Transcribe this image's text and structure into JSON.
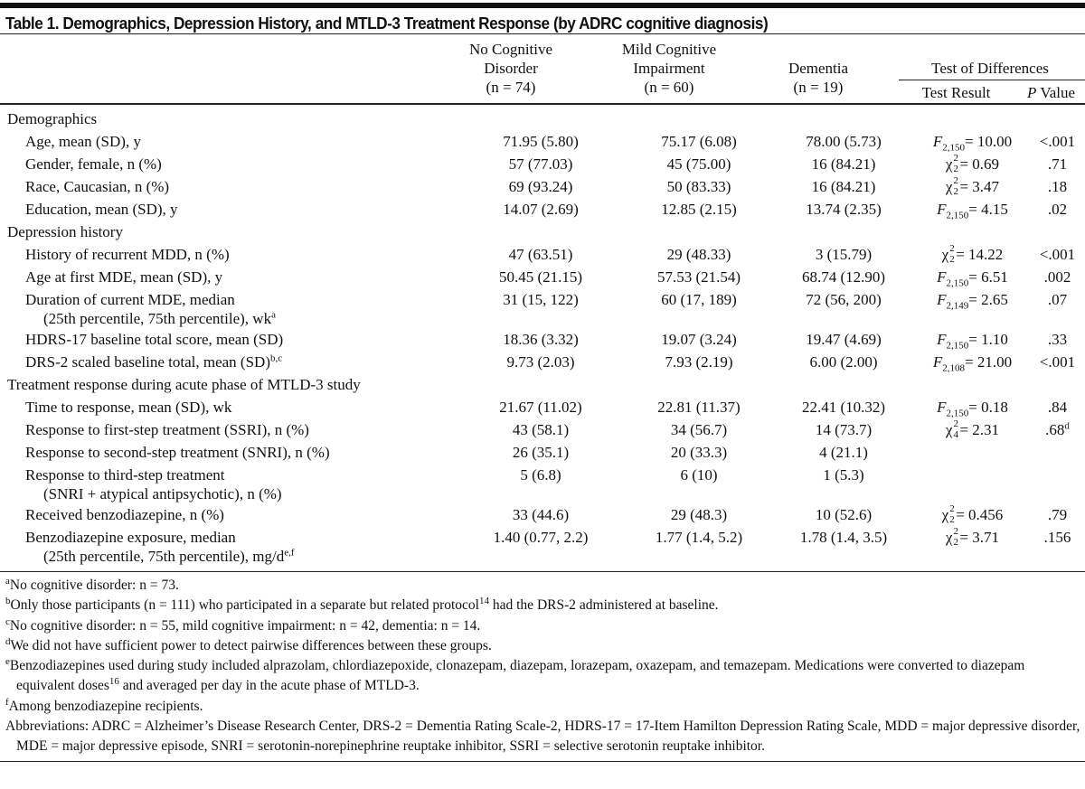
{
  "title": "Table 1. Demographics, Depression History, and MTLD-3 Treatment Response (by ADRC cognitive diagnosis)",
  "columns": {
    "c1": [
      "No Cognitive",
      "Disorder",
      "(n = 74)"
    ],
    "c2": [
      "Mild Cognitive",
      "Impairment",
      "(n = 60)"
    ],
    "c3": [
      "Dementia",
      "(n = 19)"
    ],
    "group": "Test of Differences",
    "test": "Test Result",
    "p_italic": "P",
    "p": "Value"
  },
  "rows": [
    {
      "section": "Demographics"
    },
    {
      "label": "Age, mean (SD), y",
      "v": [
        "71.95 (5.80)",
        "75.17 (6.08)",
        "78.00 (5.73)"
      ],
      "test": {
        "s": "F",
        "sub": "2,150",
        "val": "= 10.00"
      },
      "p": "<.001"
    },
    {
      "label": "Gender, female, n (%)",
      "v": [
        "57 (77.03)",
        "45 (75.00)",
        "16 (84.21)"
      ],
      "test": {
        "s": "χ",
        "sup": "2",
        "sub": "2",
        "val": "= 0.69"
      },
      "p": ".71"
    },
    {
      "label": "Race, Caucasian, n (%)",
      "v": [
        "69 (93.24)",
        "50 (83.33)",
        "16 (84.21)"
      ],
      "test": {
        "s": "χ",
        "sup": "2",
        "sub": "2",
        "val": "= 3.47"
      },
      "p": ".18"
    },
    {
      "label": "Education, mean (SD), y",
      "v": [
        "14.07 (2.69)",
        "12.85 (2.15)",
        "13.74 (2.35)"
      ],
      "test": {
        "s": "F",
        "sub": "2,150",
        "val": "= 4.15"
      },
      "p": ".02"
    },
    {
      "section": "Depression history"
    },
    {
      "label": "History of recurrent MDD, n (%)",
      "v": [
        "47 (63.51)",
        "29 (48.33)",
        "3 (15.79)"
      ],
      "test": {
        "s": "χ",
        "sup": "2",
        "sub": "2",
        "val": "= 14.22"
      },
      "p": "<.001"
    },
    {
      "label": "Age at first MDE, mean (SD), y",
      "v": [
        "50.45 (21.15)",
        "57.53 (21.54)",
        "68.74 (12.90)"
      ],
      "test": {
        "s": "F",
        "sub": "2,150",
        "val": "= 6.51"
      },
      "p": ".002"
    },
    {
      "label": "Duration of current MDE, median",
      "label2": "(25th percentile, 75th percentile), wk",
      "label2_sup": "a",
      "v": [
        "31 (15, 122)",
        "60 (17, 189)",
        "72 (56, 200)"
      ],
      "test": {
        "s": "F",
        "sub": "2,149",
        "val": "= 2.65"
      },
      "p": ".07"
    },
    {
      "label": "HDRS-17 baseline total score, mean (SD)",
      "v": [
        "18.36 (3.32)",
        "19.07 (3.24)",
        "19.47 (4.69)"
      ],
      "test": {
        "s": "F",
        "sub": "2,150",
        "val": "= 1.10"
      },
      "p": ".33"
    },
    {
      "label": "DRS-2 scaled baseline total, mean (SD)",
      "label_sup": "b,c",
      "v": [
        "9.73 (2.03)",
        "7.93 (2.19)",
        "6.00 (2.00)"
      ],
      "test": {
        "s": "F",
        "sub": "2,108",
        "val": "= 21.00"
      },
      "p": "<.001"
    },
    {
      "section": "Treatment response during acute phase of MTLD-3 study"
    },
    {
      "label": "Time to response, mean (SD), wk",
      "v": [
        "21.67 (11.02)",
        "22.81 (11.37)",
        "22.41 (10.32)"
      ],
      "test": {
        "s": "F",
        "sub": "2,150",
        "val": "= 0.18"
      },
      "p": ".84"
    },
    {
      "label": "Response to first-step treatment (SSRI), n (%)",
      "v": [
        "43 (58.1)",
        "34 (56.7)",
        "14 (73.7)"
      ],
      "test": {
        "s": "χ",
        "sup": "2",
        "sub": "4",
        "val": "= 2.31"
      },
      "p": ".68",
      "p_sup": "d"
    },
    {
      "label": "Response to second-step treatment (SNRI), n (%)",
      "v": [
        "26 (35.1)",
        "20 (33.3)",
        "4 (21.1)"
      ]
    },
    {
      "label": "Response to third-step treatment",
      "label2": "(SNRI + atypical antipsychotic), n (%)",
      "v": [
        "5 (6.8)",
        "6 (10)",
        "1 (5.3)"
      ]
    },
    {
      "label": "Received benzodiazepine, n (%)",
      "v": [
        "33 (44.6)",
        "29 (48.3)",
        "10 (52.6)"
      ],
      "test": {
        "s": "χ",
        "sup": "2",
        "sub": "2",
        "val": "= 0.456"
      },
      "p": ".79"
    },
    {
      "label": "Benzodiazepine exposure, median",
      "label2": "(25th percentile, 75th percentile), mg/d",
      "label2_sup": "e,f",
      "v": [
        "1.40 (0.77, 2.2)",
        "1.77 (1.4, 5.2)",
        "1.78 (1.4, 3.5)"
      ],
      "test": {
        "s": "χ",
        "sup": "2",
        "sub": "2",
        "val": "= 3.71"
      },
      "p": ".156"
    }
  ],
  "footnotes": [
    {
      "mark": "a",
      "text": "No cognitive disorder: n = 73."
    },
    {
      "mark": "b",
      "text": "Only those participants (n = 111) who participated in a separate but related protocol",
      "ref": "14",
      "text2": " had the DRS-2 administered at baseline."
    },
    {
      "mark": "c",
      "text": "No cognitive disorder: n = 55, mild cognitive impairment: n = 42, dementia: n = 14."
    },
    {
      "mark": "d",
      "text": "We did not have sufficient power to detect pairwise differences between these groups."
    },
    {
      "mark": "e",
      "text": "Benzodiazepines used during study included alprazolam, chlordiazepoxide, clonazepam, diazepam, lorazepam, oxazepam, and temazepam. Medications were converted to diazepam equivalent doses",
      "ref": "16",
      "text2": " and averaged per day in the acute phase of MTLD-3."
    },
    {
      "mark": "f",
      "text": "Among benzodiazepine recipients."
    }
  ],
  "abbreviations": "Abbreviations: ADRC = Alzheimer’s Disease Research Center, DRS-2 = Dementia Rating Scale-2, HDRS-17 = 17-Item Hamilton Depression Rating Scale, MDD = major depressive disorder, MDE = major depressive episode, SNRI = serotonin-norepinephrine reuptake inhibitor, SSRI = selective serotonin reuptake inhibitor."
}
